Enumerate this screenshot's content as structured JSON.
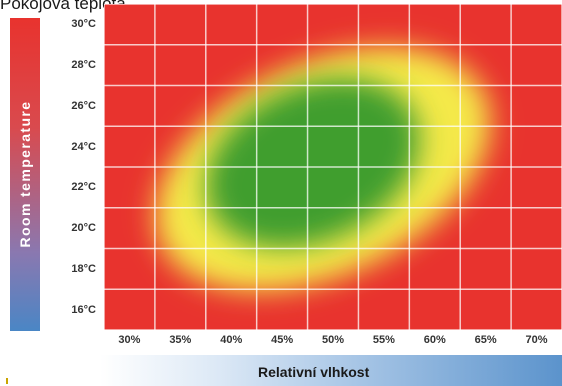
{
  "top_title": "Pokojová teplota",
  "chart_data": {
    "type": "heatmap",
    "title": "Pokojová teplota",
    "xlabel": "Relativní vlhkost",
    "ylabel": "Room temperature",
    "x_ticks": [
      "30%",
      "35%",
      "40%",
      "45%",
      "50%",
      "55%",
      "60%",
      "65%",
      "70%"
    ],
    "y_ticks": [
      "30°C",
      "28°C",
      "26°C",
      "24°C",
      "22°C",
      "20°C",
      "18°C",
      "16°C"
    ],
    "x_range": [
      27.5,
      72.5
    ],
    "y_range": [
      15,
      31
    ],
    "grid": true,
    "zones": [
      {
        "level": "comfort",
        "color": "#3f9e2e",
        "center": [
          48,
          23.2
        ],
        "extent": [
          11,
          3.8
        ],
        "tilt_deg": -25
      },
      {
        "level": "borderline",
        "color": "#f4e94a",
        "center": [
          49,
          22.9
        ],
        "extent": [
          17.5,
          5.2
        ],
        "tilt_deg": -25
      }
    ],
    "colors": {
      "outside": "#e8332e",
      "borderline": "#f4e94a",
      "comfort": "#3f9e2e"
    }
  },
  "y_bar_label": "Room temperature",
  "x_bar_label": "Relativní vlhkost"
}
